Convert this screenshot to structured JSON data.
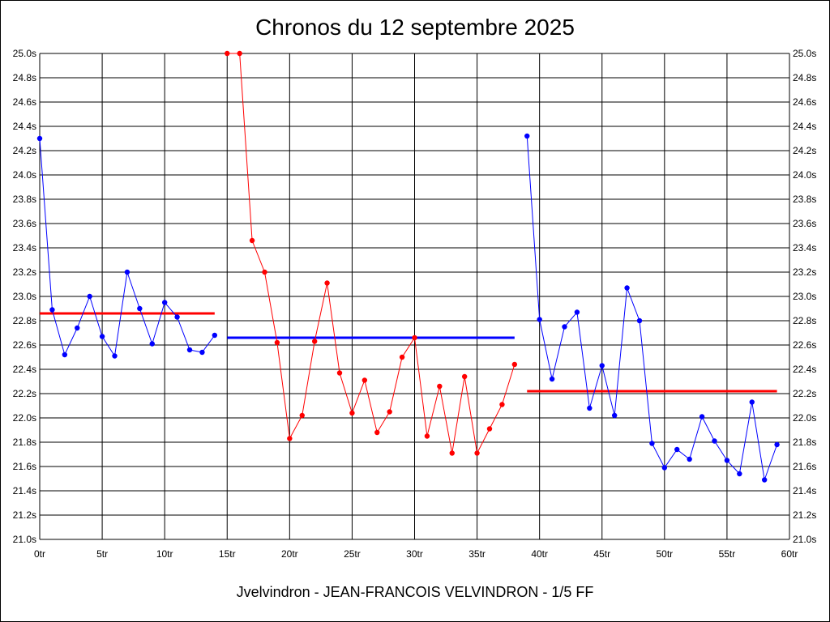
{
  "title": "Chronos du 12 septembre 2025",
  "footer": "Jvelvindron - JEAN-FRANCOIS VELVINDRON - 1/5 FF",
  "colors": {
    "background": "#ffffff",
    "grid": "#000000",
    "series_blue": "#0000ff",
    "series_red": "#ff0000"
  },
  "chart_data": {
    "type": "line",
    "title": "Chronos du 12 septembre 2025",
    "xlabel": "",
    "ylabel": "",
    "xlim": [
      0,
      60
    ],
    "ylim": [
      21.0,
      25.0
    ],
    "grid": true,
    "x_ticks": [
      0,
      5,
      10,
      15,
      20,
      25,
      30,
      35,
      40,
      45,
      50,
      55,
      60
    ],
    "x_tick_labels": [
      "0tr",
      "5tr",
      "10tr",
      "15tr",
      "20tr",
      "25tr",
      "30tr",
      "35tr",
      "40tr",
      "45tr",
      "50tr",
      "55tr",
      "60tr"
    ],
    "y_ticks": [
      21.0,
      21.2,
      21.4,
      21.6,
      21.8,
      22.0,
      22.2,
      22.4,
      22.6,
      22.8,
      23.0,
      23.2,
      23.4,
      23.6,
      23.8,
      24.0,
      24.2,
      24.4,
      24.6,
      24.8,
      25.0
    ],
    "y_tick_labels": [
      "21.0s",
      "21.2s",
      "21.4s",
      "21.6s",
      "21.8s",
      "22.0s",
      "22.2s",
      "22.4s",
      "22.6s",
      "22.8s",
      "23.0s",
      "23.2s",
      "23.4s",
      "23.6s",
      "23.8s",
      "24.0s",
      "24.2s",
      "24.4s",
      "24.6s",
      "24.8s",
      "25.0s"
    ],
    "series": [
      {
        "color": "#0000ff",
        "x": [
          0,
          1,
          2,
          3,
          4,
          5,
          6,
          7,
          8,
          9,
          10,
          11,
          12,
          13,
          14
        ],
        "y": [
          24.3,
          22.89,
          22.52,
          22.74,
          23.0,
          22.67,
          22.51,
          23.2,
          22.9,
          22.61,
          22.95,
          22.83,
          22.56,
          22.54,
          22.68
        ]
      },
      {
        "color": "#ff0000",
        "x": [
          15,
          16,
          17,
          18,
          19,
          20,
          21,
          22,
          23,
          24,
          25,
          26,
          27,
          28,
          29,
          30,
          31,
          32,
          33,
          34,
          35,
          36,
          37,
          38
        ],
        "y": [
          25.0,
          25.0,
          23.46,
          23.2,
          22.62,
          21.83,
          22.02,
          22.63,
          23.11,
          22.37,
          22.04,
          22.31,
          21.88,
          22.05,
          22.5,
          22.66,
          21.85,
          22.26,
          21.71,
          22.34,
          21.71,
          21.91,
          22.11,
          22.44
        ]
      },
      {
        "color": "#0000ff",
        "x": [
          39,
          40,
          41,
          42,
          43,
          44,
          45,
          46,
          47,
          48,
          49,
          50,
          51,
          52,
          53,
          54,
          55,
          56,
          57,
          58,
          59
        ],
        "y": [
          24.32,
          22.81,
          22.32,
          22.75,
          22.87,
          22.08,
          22.43,
          22.02,
          23.07,
          22.8,
          21.79,
          21.59,
          21.74,
          21.66,
          22.01,
          21.81,
          21.65,
          21.54,
          22.13,
          21.49,
          21.78
        ]
      }
    ],
    "averages": [
      {
        "color": "#ff0000",
        "x_start": 0,
        "x_end": 14,
        "value": 22.86
      },
      {
        "color": "#0000ff",
        "x_start": 15,
        "x_end": 38,
        "value": 22.66
      },
      {
        "color": "#ff0000",
        "x_start": 39,
        "x_end": 59,
        "value": 22.22
      }
    ]
  }
}
